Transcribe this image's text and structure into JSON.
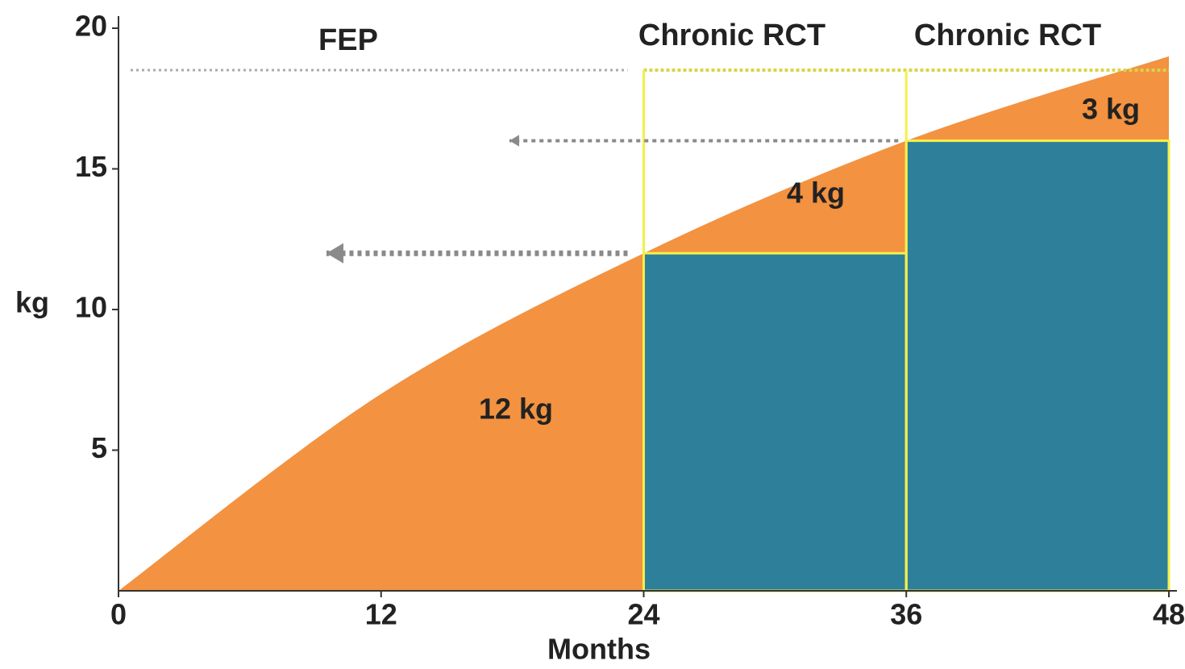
{
  "chart_data": {
    "type": "area",
    "x": [
      0,
      12,
      24,
      36,
      48
    ],
    "values": [
      0,
      7,
      12,
      16,
      19
    ],
    "color": "#f39240",
    "blocks": [
      {
        "x0": 24,
        "x1": 36,
        "value": 12
      },
      {
        "x0": 36,
        "x1": 48,
        "value": 16
      }
    ],
    "block_color": "#2e7f9a",
    "xlim": [
      0,
      48
    ],
    "ylim": [
      0,
      20
    ],
    "xticks": [
      0,
      12,
      24,
      36,
      48
    ],
    "yticks": [
      5,
      10,
      15,
      20
    ],
    "xlabel": "Months",
    "ylabel": "kg",
    "periods": [
      "FEP",
      "Chronic RCT",
      "Chronic RCT"
    ],
    "annotations": [
      "12 kg",
      "4 kg",
      "3 kg"
    ]
  }
}
